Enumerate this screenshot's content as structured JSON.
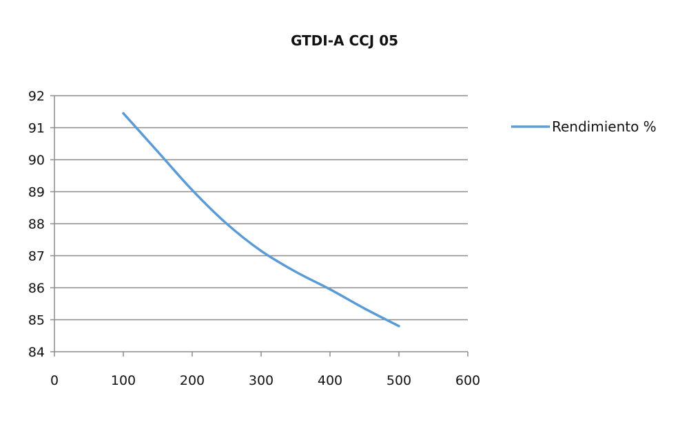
{
  "chart_data": {
    "type": "line",
    "title": "GTDI-A CCJ 05",
    "xlabel": "",
    "ylabel": "",
    "xlim": [
      0,
      600
    ],
    "ylim": [
      84,
      92
    ],
    "x_ticks": [
      "0",
      "100",
      "200",
      "300",
      "400",
      "500",
      "600"
    ],
    "y_ticks": [
      "84",
      "85",
      "86",
      "87",
      "88",
      "89",
      "90",
      "91",
      "92"
    ],
    "grid": "horizontal",
    "legend_position": "right",
    "series": [
      {
        "name": "Rendimiento %",
        "color": "#5b9bd5",
        "x": [
          100,
          150,
          200,
          250,
          300,
          350,
          400,
          450,
          500
        ],
        "y": [
          91.45,
          90.25,
          89.05,
          88.0,
          87.15,
          86.5,
          85.95,
          85.35,
          84.8
        ]
      }
    ]
  }
}
